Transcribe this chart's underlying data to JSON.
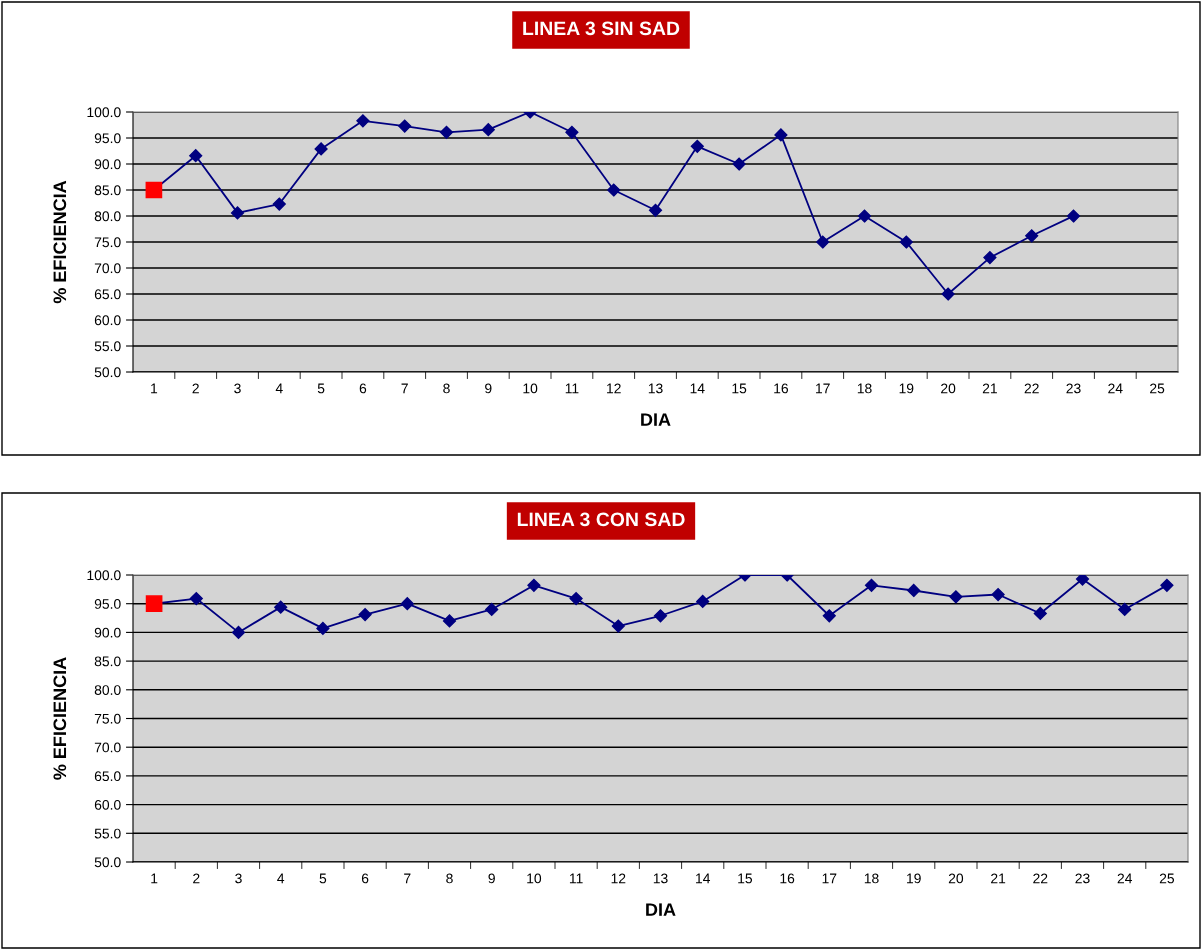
{
  "chart_data": [
    {
      "type": "line",
      "title": "LINEA 3 SIN SAD",
      "xlabel": "DIA",
      "ylabel": "% EFICIENCIA",
      "categories": [
        "1",
        "2",
        "3",
        "4",
        "5",
        "6",
        "7",
        "8",
        "9",
        "10",
        "11",
        "12",
        "13",
        "14",
        "15",
        "16",
        "17",
        "18",
        "19",
        "20",
        "21",
        "22",
        "23",
        "24",
        "25"
      ],
      "series": [
        {
          "color": "#000080",
          "marker": "diamond",
          "values": [
            85,
            91.6,
            80.6,
            82.3,
            92.9,
            98.3,
            97.3,
            96.1,
            96.6,
            100,
            96.1,
            85,
            81.1,
            93.4,
            90,
            95.6,
            75,
            80,
            75,
            65,
            72,
            76.2,
            80,
            null,
            null
          ]
        },
        {
          "type": "scatter",
          "color": "#ff0000",
          "marker": "square",
          "values": [
            85,
            null,
            null,
            null,
            null,
            null,
            null,
            null,
            null,
            null,
            null,
            null,
            null,
            null,
            null,
            null,
            null,
            null,
            null,
            null,
            null,
            null,
            null,
            null,
            null
          ]
        }
      ],
      "ylim": [
        50,
        100
      ],
      "yticks": [
        {
          "value": 50,
          "label": "50.0"
        },
        {
          "value": 55,
          "label": "55.0"
        },
        {
          "value": 60,
          "label": "60.0"
        },
        {
          "value": 65,
          "label": "65.0"
        },
        {
          "value": 70,
          "label": "70.0"
        },
        {
          "value": 75,
          "label": "75.0"
        },
        {
          "value": 80,
          "label": "80.0"
        },
        {
          "value": 85,
          "label": "85.0"
        },
        {
          "value": 90,
          "label": "90.0"
        },
        {
          "value": 95,
          "label": "95.0"
        },
        {
          "value": 100,
          "label": "100.0"
        }
      ],
      "grid": "y",
      "line_style": "solid"
    },
    {
      "type": "line",
      "title": "LINEA 3 CON SAD",
      "xlabel": "DIA",
      "ylabel": "% EFICIENCIA",
      "categories": [
        "1",
        "2",
        "3",
        "4",
        "5",
        "6",
        "7",
        "8",
        "9",
        "10",
        "11",
        "12",
        "13",
        "14",
        "15",
        "16",
        "17",
        "18",
        "19",
        "20",
        "21",
        "22",
        "23",
        "24",
        "25"
      ],
      "series": [
        {
          "color": "#000080",
          "marker": "diamond",
          "values": [
            95,
            95.9,
            90,
            94.4,
            90.7,
            93.1,
            95,
            92,
            94,
            98.2,
            95.9,
            91.1,
            92.9,
            95.4,
            100,
            100,
            92.9,
            98.2,
            97.3,
            96.2,
            96.6,
            93.3,
            99.3,
            94,
            98.2
          ]
        },
        {
          "type": "scatter",
          "color": "#ff0000",
          "marker": "square",
          "values": [
            95,
            null,
            null,
            null,
            null,
            null,
            null,
            null,
            null,
            null,
            null,
            null,
            null,
            null,
            null,
            null,
            null,
            null,
            null,
            null,
            null,
            null,
            null,
            null,
            null
          ]
        }
      ],
      "ylim": [
        50,
        100
      ],
      "yticks": [
        {
          "value": 50,
          "label": "50.0"
        },
        {
          "value": 55,
          "label": "55.0"
        },
        {
          "value": 60,
          "label": "60.0"
        },
        {
          "value": 65,
          "label": "65.0"
        },
        {
          "value": 70,
          "label": "70.0"
        },
        {
          "value": 75,
          "label": "75.0"
        },
        {
          "value": 80,
          "label": "80.0"
        },
        {
          "value": 85,
          "label": "85.0"
        },
        {
          "value": 90,
          "label": "90.0"
        },
        {
          "value": 95,
          "label": "95.0"
        },
        {
          "value": 100,
          "label": "100.0"
        }
      ],
      "grid": "y",
      "line_style": "solid"
    }
  ]
}
